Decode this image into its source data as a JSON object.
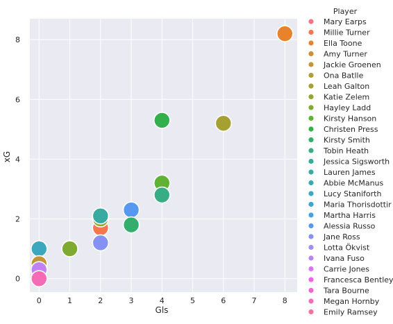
{
  "chart_data": {
    "type": "scatter",
    "xlabel": "Gls",
    "ylabel": "xG",
    "xlim": [
      -0.3,
      8.4
    ],
    "ylim": [
      -0.45,
      8.7
    ],
    "xticks": [
      0,
      1,
      2,
      3,
      4,
      5,
      6,
      7,
      8
    ],
    "yticks": [
      0,
      2,
      4,
      6,
      8
    ],
    "grid": true,
    "legend": {
      "title": "Player",
      "placement": "right",
      "entries": [
        {
          "name": "Mary Earps",
          "color": "#f77189"
        },
        {
          "name": "Millie Turner",
          "color": "#f7754f"
        },
        {
          "name": "Ella Toone",
          "color": "#e8822c"
        },
        {
          "name": "Amy Turner",
          "color": "#d38c32"
        },
        {
          "name": "Jackie Groenen",
          "color": "#c49535"
        },
        {
          "name": "Ona Batlle",
          "color": "#b49c33"
        },
        {
          "name": "Leah Galton",
          "color": "#a4a031"
        },
        {
          "name": "Katie Zelem",
          "color": "#92a631"
        },
        {
          "name": "Hayley Ladd",
          "color": "#7faa31"
        },
        {
          "name": "Kirsty Hanson",
          "color": "#5fb233"
        },
        {
          "name": "Christen Press",
          "color": "#33b04c"
        },
        {
          "name": "Kirsty Smith",
          "color": "#34ae6d"
        },
        {
          "name": "Tobin Heath",
          "color": "#36ad84"
        },
        {
          "name": "Jessica Sigsworth",
          "color": "#37ab93"
        },
        {
          "name": "Lauren James",
          "color": "#38aaa1"
        },
        {
          "name": "Abbie McManus",
          "color": "#39a9af"
        },
        {
          "name": "Lucy Staniforth",
          "color": "#3ba8be"
        },
        {
          "name": "Maria Thorisdottir",
          "color": "#3ea5cf"
        },
        {
          "name": "Martha Harris",
          "color": "#44a1e2"
        },
        {
          "name": "Alessia Russo",
          "color": "#5799f2"
        },
        {
          "name": "Jane Ross",
          "color": "#8591f3"
        },
        {
          "name": "Lotta Ökvist",
          "color": "#a48cf4"
        },
        {
          "name": "Ivana Fuso",
          "color": "#bf82f3"
        },
        {
          "name": "Carrie Jones",
          "color": "#d877f0"
        },
        {
          "name": "Francesca Bentley",
          "color": "#f263e8"
        },
        {
          "name": "Tara Bourne",
          "color": "#f564d0"
        },
        {
          "name": "Megan Hornby",
          "color": "#f56bb6"
        },
        {
          "name": "Emily Ramsey",
          "color": "#f66fa0"
        }
      ]
    },
    "points": [
      {
        "player": "Ella Toone",
        "x": 8,
        "y": 8.2
      },
      {
        "player": "Christen Press",
        "x": 4,
        "y": 5.3
      },
      {
        "player": "Leah Galton",
        "x": 6,
        "y": 5.2
      },
      {
        "player": "Kirsty Hanson",
        "x": 4,
        "y": 3.2
      },
      {
        "player": "Tobin Heath",
        "x": 4,
        "y": 2.8
      },
      {
        "player": "Alessia Russo",
        "x": 3,
        "y": 2.3
      },
      {
        "player": "Kirsty Smith",
        "x": 3,
        "y": 1.8
      },
      {
        "player": "Millie Turner",
        "x": 2,
        "y": 1.7
      },
      {
        "player": "Katie Zelem",
        "x": 2,
        "y": 2.0
      },
      {
        "player": "Lauren James",
        "x": 2,
        "y": 2.1
      },
      {
        "player": "Jane Ross",
        "x": 2,
        "y": 1.2
      },
      {
        "player": "Hayley Ladd",
        "x": 1,
        "y": 1.0
      },
      {
        "player": "Lucy Staniforth",
        "x": 0,
        "y": 1.0
      },
      {
        "player": "Jackie Groenen",
        "x": 0,
        "y": 0.5
      },
      {
        "player": "Ivana Fuso",
        "x": 0,
        "y": 0.3
      },
      {
        "player": "Megan Hornby",
        "x": 0,
        "y": 0.0
      }
    ]
  }
}
